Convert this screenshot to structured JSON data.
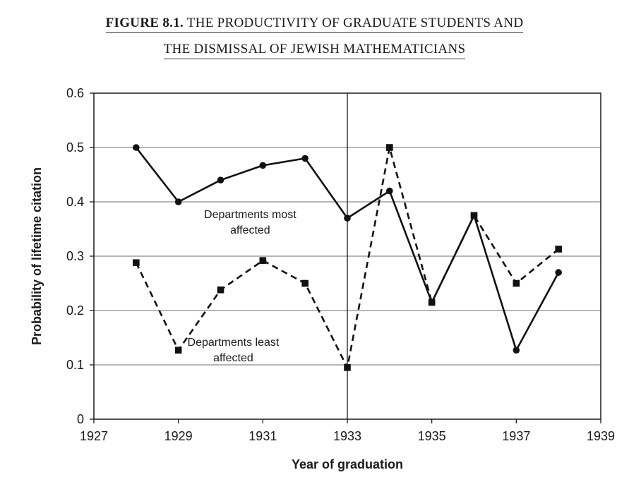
{
  "figure": {
    "label": "FIGURE 8.1.",
    "title_line1": "THE PRODUCTIVITY OF GRADUATE STUDENTS AND",
    "title_line2": "THE DISMISSAL OF JEWISH MATHEMATICIANS"
  },
  "chart_data": {
    "type": "line",
    "title": "FIGURE 8.1. THE PRODUCTIVITY OF GRADUATE STUDENTS AND THE DISMISSAL OF JEWISH MATHEMATICIANS",
    "xlabel": "Year of graduation",
    "ylabel": "Probability of lifetime citation",
    "xlim": [
      1927,
      1939
    ],
    "ylim": [
      0,
      0.6
    ],
    "x_ticks": [
      1927,
      1929,
      1931,
      1933,
      1935,
      1937,
      1939
    ],
    "x_tick_labels": [
      "1927",
      "1929",
      "1931",
      "1933",
      "1935",
      "1937",
      "1939"
    ],
    "y_ticks": [
      0,
      0.1,
      0.2,
      0.3,
      0.4,
      0.5,
      0.6
    ],
    "y_tick_labels": [
      "0",
      "0.1",
      "0.2",
      "0.3",
      "0.4",
      "0.5",
      "0.6"
    ],
    "grid": "horizontal",
    "vertical_marker": 1933,
    "series": [
      {
        "name": "Departments most affected",
        "style": "solid",
        "marker": "circle",
        "x": [
          1928,
          1929,
          1930,
          1931,
          1932,
          1933,
          1934,
          1935,
          1936,
          1937,
          1938
        ],
        "values": [
          0.5,
          0.4,
          0.44,
          0.467,
          0.48,
          0.37,
          0.42,
          0.215,
          0.375,
          0.127,
          0.27
        ]
      },
      {
        "name": "Departments least affected",
        "style": "dashed",
        "marker": "square",
        "x": [
          1928,
          1929,
          1930,
          1931,
          1932,
          1933,
          1934,
          1935,
          1936,
          1937,
          1938
        ],
        "values": [
          0.288,
          0.127,
          0.238,
          0.292,
          0.25,
          0.095,
          0.5,
          0.215,
          0.375,
          0.25,
          0.313
        ]
      }
    ],
    "annotations": [
      {
        "series": "Departments most affected",
        "lines": [
          "Departments most",
          "affected"
        ],
        "anchor_x": 1930.7,
        "anchor_y": 0.37
      },
      {
        "series": "Departments least affected",
        "lines": [
          "Departments least",
          "affected"
        ],
        "anchor_x": 1930.3,
        "anchor_y": 0.135
      }
    ]
  }
}
